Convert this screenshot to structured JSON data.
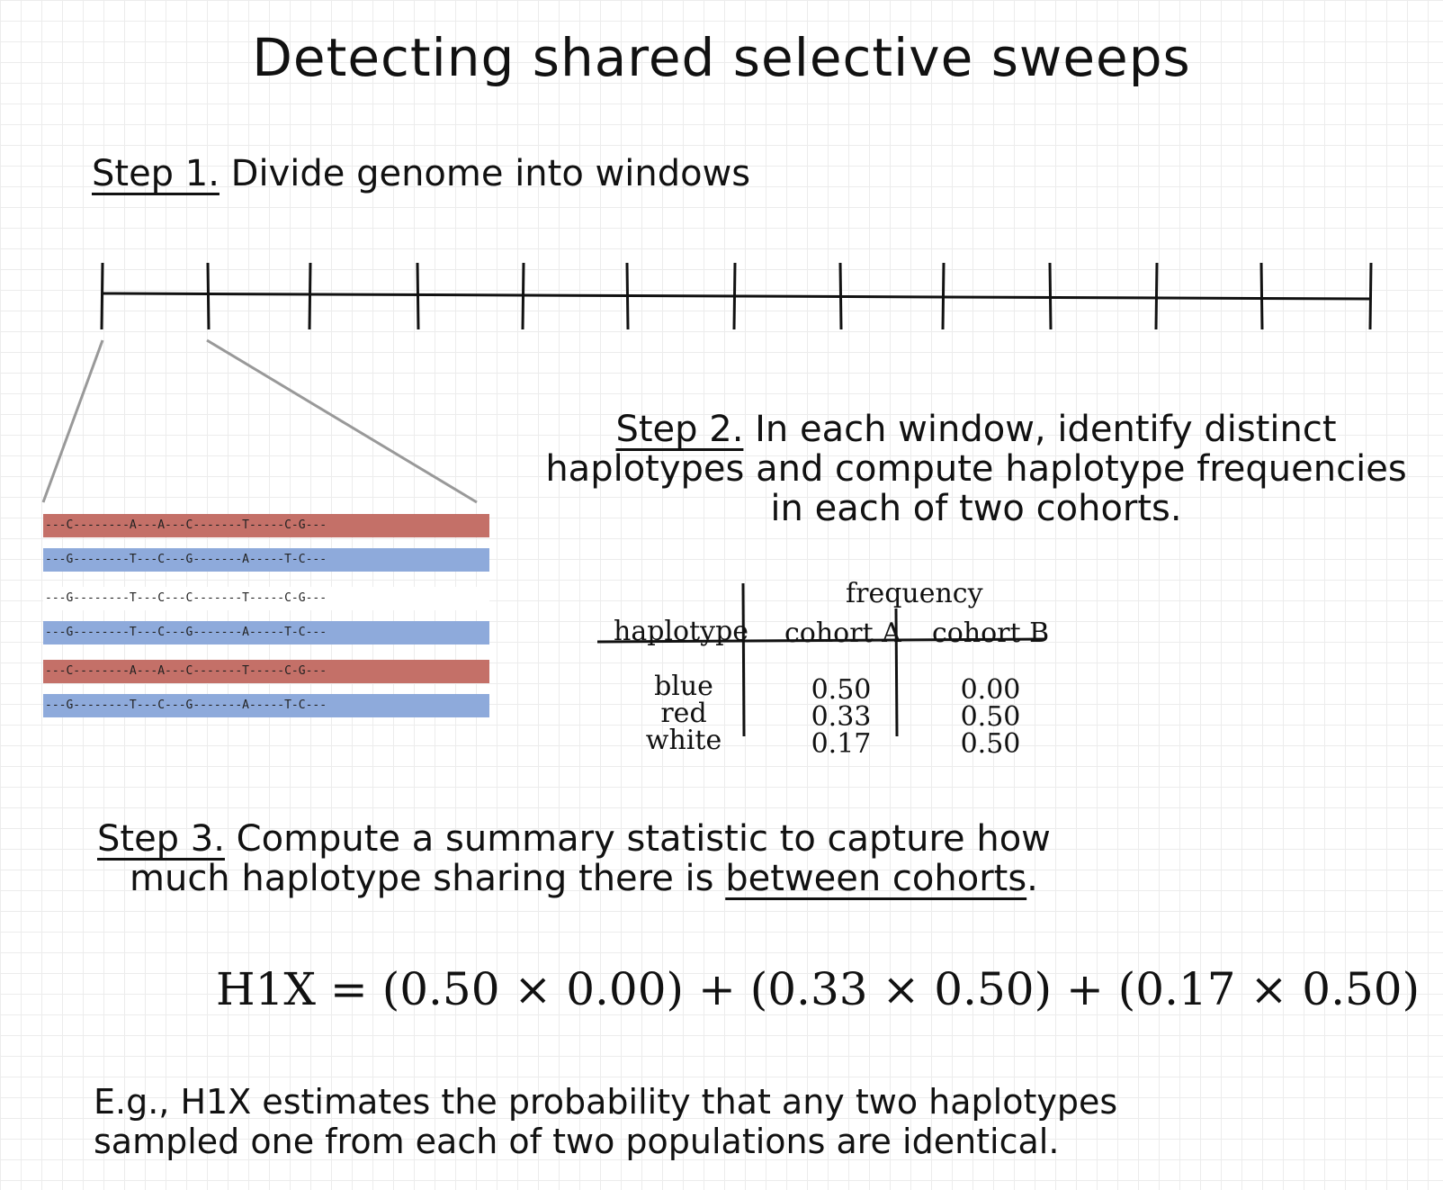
{
  "title": "Detecting shared selective sweeps",
  "step1": {
    "label": "Step 1.",
    "text": " Divide genome into windows"
  },
  "step2": {
    "label": "Step 2.",
    "text": " In each window, identify distinct haplotypes and compute haplotype frequencies in each of two cohorts."
  },
  "haplotypes": [
    {
      "color": "red",
      "seq": "---C--------A---A---C-------T-----C-G---",
      "fill": "#c47068"
    },
    {
      "color": "blue",
      "seq": "---G--------T---C---G-------A-----T-C---",
      "fill": "#8eaadb"
    },
    {
      "color": "white",
      "seq": "---G--------T---C---C-------T-----C-G---",
      "fill": "#ffffff"
    },
    {
      "color": "blue",
      "seq": "---G--------T---C---G-------A-----T-C---",
      "fill": "#8eaadb"
    },
    {
      "color": "red",
      "seq": "---C--------A---A---C-------T-----C-G---",
      "fill": "#c47068"
    },
    {
      "color": "blue",
      "seq": "---G--------T---C---G-------A-----T-C---",
      "fill": "#8eaadb"
    }
  ],
  "table": {
    "group_header": "frequency",
    "col_haplotype": "haplotype",
    "col_a": "cohort A",
    "col_b": "cohort B",
    "rows": [
      {
        "name": "blue",
        "a": "0.50",
        "b": "0.00"
      },
      {
        "name": "red",
        "a": "0.33",
        "b": "0.50"
      },
      {
        "name": "white",
        "a": "0.17",
        "b": "0.50"
      }
    ]
  },
  "step3": {
    "label": "Step 3.",
    "text1": " Compute a summary statistic to capture how",
    "text2": "much haplotype sharing there is ",
    "emph": "between cohorts",
    "end": "."
  },
  "formula": "H1X = (0.50 × 0.00) + (0.33 × 0.50) + (0.17 × 0.50)",
  "note": {
    "line1": "E.g., H1X estimates the probability that any two haplotypes",
    "line2": "sampled one from each of two populations are identical."
  }
}
